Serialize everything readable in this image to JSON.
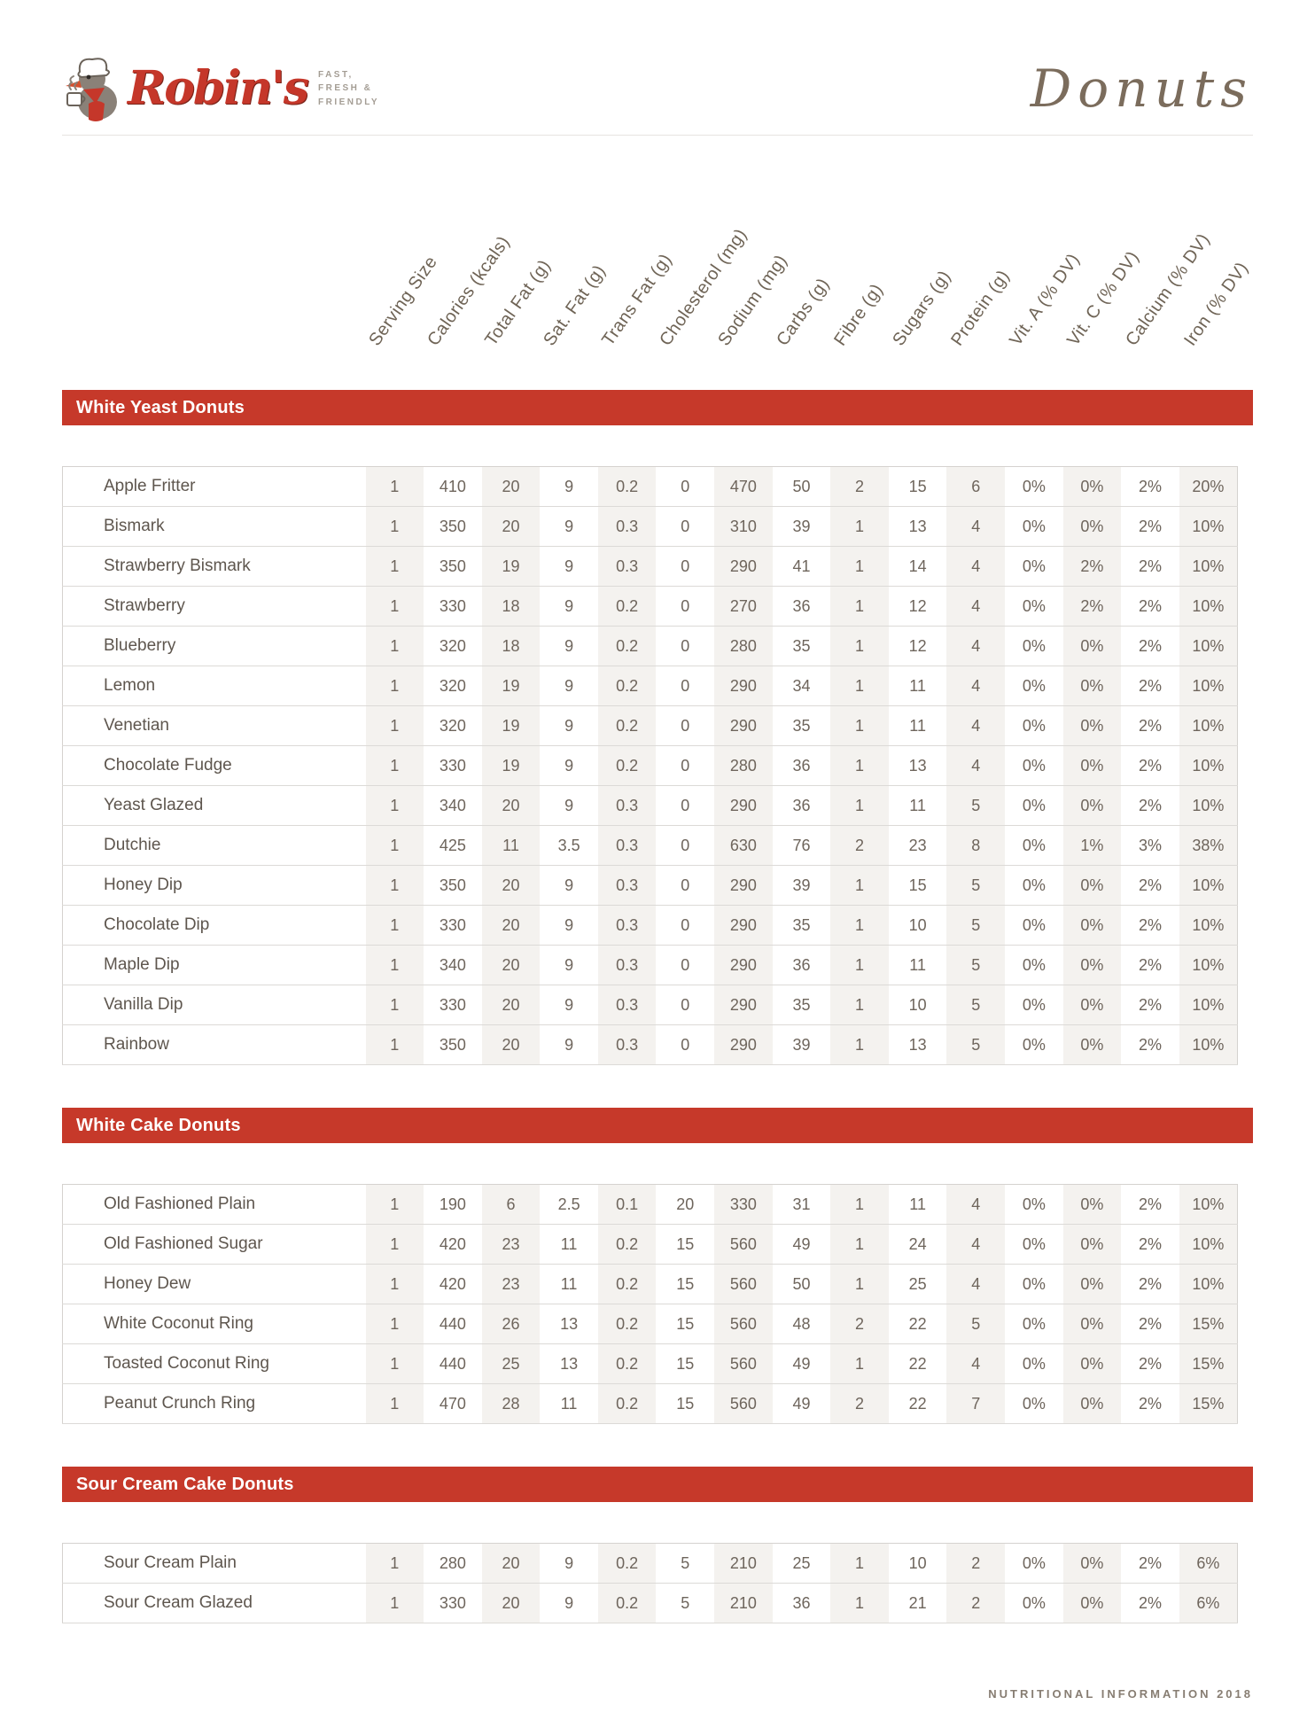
{
  "brand": {
    "logo_text": "Robin's",
    "tagline_lines": [
      "FAST,",
      "FRESH &",
      "FRIENDLY"
    ],
    "page_title": "Donuts"
  },
  "columns": [
    "Serving Size",
    "Calories (kcals)",
    "Total Fat (g)",
    "Sat. Fat (g)",
    "Trans Fat (g)",
    "Cholesterol (mg)",
    "Sodium (mg)",
    "Carbs (g)",
    "Fibre (g)",
    "Sugars (g)",
    "Protein (g)",
    "Vit. A (% DV)",
    "Vit. C (% DV)",
    "Calcium (% DV)",
    "Iron (% DV)"
  ],
  "sections": [
    {
      "title": "White Yeast Donuts",
      "rows": [
        [
          "Apple Fritter",
          "1",
          "410",
          "20",
          "9",
          "0.2",
          "0",
          "470",
          "50",
          "2",
          "15",
          "6",
          "0%",
          "0%",
          "2%",
          "20%"
        ],
        [
          "Bismark",
          "1",
          "350",
          "20",
          "9",
          "0.3",
          "0",
          "310",
          "39",
          "1",
          "13",
          "4",
          "0%",
          "0%",
          "2%",
          "10%"
        ],
        [
          "Strawberry Bismark",
          "1",
          "350",
          "19",
          "9",
          "0.3",
          "0",
          "290",
          "41",
          "1",
          "14",
          "4",
          "0%",
          "2%",
          "2%",
          "10%"
        ],
        [
          "Strawberry",
          "1",
          "330",
          "18",
          "9",
          "0.2",
          "0",
          "270",
          "36",
          "1",
          "12",
          "4",
          "0%",
          "2%",
          "2%",
          "10%"
        ],
        [
          "Blueberry",
          "1",
          "320",
          "18",
          "9",
          "0.2",
          "0",
          "280",
          "35",
          "1",
          "12",
          "4",
          "0%",
          "0%",
          "2%",
          "10%"
        ],
        [
          "Lemon",
          "1",
          "320",
          "19",
          "9",
          "0.2",
          "0",
          "290",
          "34",
          "1",
          "11",
          "4",
          "0%",
          "0%",
          "2%",
          "10%"
        ],
        [
          "Venetian",
          "1",
          "320",
          "19",
          "9",
          "0.2",
          "0",
          "290",
          "35",
          "1",
          "11",
          "4",
          "0%",
          "0%",
          "2%",
          "10%"
        ],
        [
          "Chocolate Fudge",
          "1",
          "330",
          "19",
          "9",
          "0.2",
          "0",
          "280",
          "36",
          "1",
          "13",
          "4",
          "0%",
          "0%",
          "2%",
          "10%"
        ],
        [
          "Yeast Glazed",
          "1",
          "340",
          "20",
          "9",
          "0.3",
          "0",
          "290",
          "36",
          "1",
          "11",
          "5",
          "0%",
          "0%",
          "2%",
          "10%"
        ],
        [
          "Dutchie",
          "1",
          "425",
          "11",
          "3.5",
          "0.3",
          "0",
          "630",
          "76",
          "2",
          "23",
          "8",
          "0%",
          "1%",
          "3%",
          "38%"
        ],
        [
          "Honey Dip",
          "1",
          "350",
          "20",
          "9",
          "0.3",
          "0",
          "290",
          "39",
          "1",
          "15",
          "5",
          "0%",
          "0%",
          "2%",
          "10%"
        ],
        [
          "Chocolate Dip",
          "1",
          "330",
          "20",
          "9",
          "0.3",
          "0",
          "290",
          "35",
          "1",
          "10",
          "5",
          "0%",
          "0%",
          "2%",
          "10%"
        ],
        [
          "Maple Dip",
          "1",
          "340",
          "20",
          "9",
          "0.3",
          "0",
          "290",
          "36",
          "1",
          "11",
          "5",
          "0%",
          "0%",
          "2%",
          "10%"
        ],
        [
          "Vanilla Dip",
          "1",
          "330",
          "20",
          "9",
          "0.3",
          "0",
          "290",
          "35",
          "1",
          "10",
          "5",
          "0%",
          "0%",
          "2%",
          "10%"
        ],
        [
          "Rainbow",
          "1",
          "350",
          "20",
          "9",
          "0.3",
          "0",
          "290",
          "39",
          "1",
          "13",
          "5",
          "0%",
          "0%",
          "2%",
          "10%"
        ]
      ]
    },
    {
      "title": "White Cake Donuts",
      "rows": [
        [
          "Old Fashioned Plain",
          "1",
          "190",
          "6",
          "2.5",
          "0.1",
          "20",
          "330",
          "31",
          "1",
          "11",
          "4",
          "0%",
          "0%",
          "2%",
          "10%"
        ],
        [
          "Old Fashioned Sugar",
          "1",
          "420",
          "23",
          "11",
          "0.2",
          "15",
          "560",
          "49",
          "1",
          "24",
          "4",
          "0%",
          "0%",
          "2%",
          "10%"
        ],
        [
          "Honey Dew",
          "1",
          "420",
          "23",
          "11",
          "0.2",
          "15",
          "560",
          "50",
          "1",
          "25",
          "4",
          "0%",
          "0%",
          "2%",
          "10%"
        ],
        [
          "White Coconut Ring",
          "1",
          "440",
          "26",
          "13",
          "0.2",
          "15",
          "560",
          "48",
          "2",
          "22",
          "5",
          "0%",
          "0%",
          "2%",
          "15%"
        ],
        [
          "Toasted Coconut Ring",
          "1",
          "440",
          "25",
          "13",
          "0.2",
          "15",
          "560",
          "49",
          "1",
          "22",
          "4",
          "0%",
          "0%",
          "2%",
          "15%"
        ],
        [
          "Peanut Crunch Ring",
          "1",
          "470",
          "28",
          "11",
          "0.2",
          "15",
          "560",
          "49",
          "2",
          "22",
          "7",
          "0%",
          "0%",
          "2%",
          "15%"
        ]
      ]
    },
    {
      "title": "Sour Cream Cake Donuts",
      "rows": [
        [
          "Sour Cream Plain",
          "1",
          "280",
          "20",
          "9",
          "0.2",
          "5",
          "210",
          "25",
          "1",
          "10",
          "2",
          "0%",
          "0%",
          "2%",
          "6%"
        ],
        [
          "Sour Cream Glazed",
          "1",
          "330",
          "20",
          "9",
          "0.2",
          "5",
          "210",
          "36",
          "1",
          "21",
          "2",
          "0%",
          "0%",
          "2%",
          "6%"
        ]
      ]
    }
  ],
  "footer": "NUTRITIONAL INFORMATION 2018",
  "colors": {
    "accent_red": "#c6392a",
    "logo_red": "#c5372a",
    "text_brown": "#6e655c",
    "column_shade": "#f4f2ef",
    "title_brown": "#7b6c5c"
  }
}
